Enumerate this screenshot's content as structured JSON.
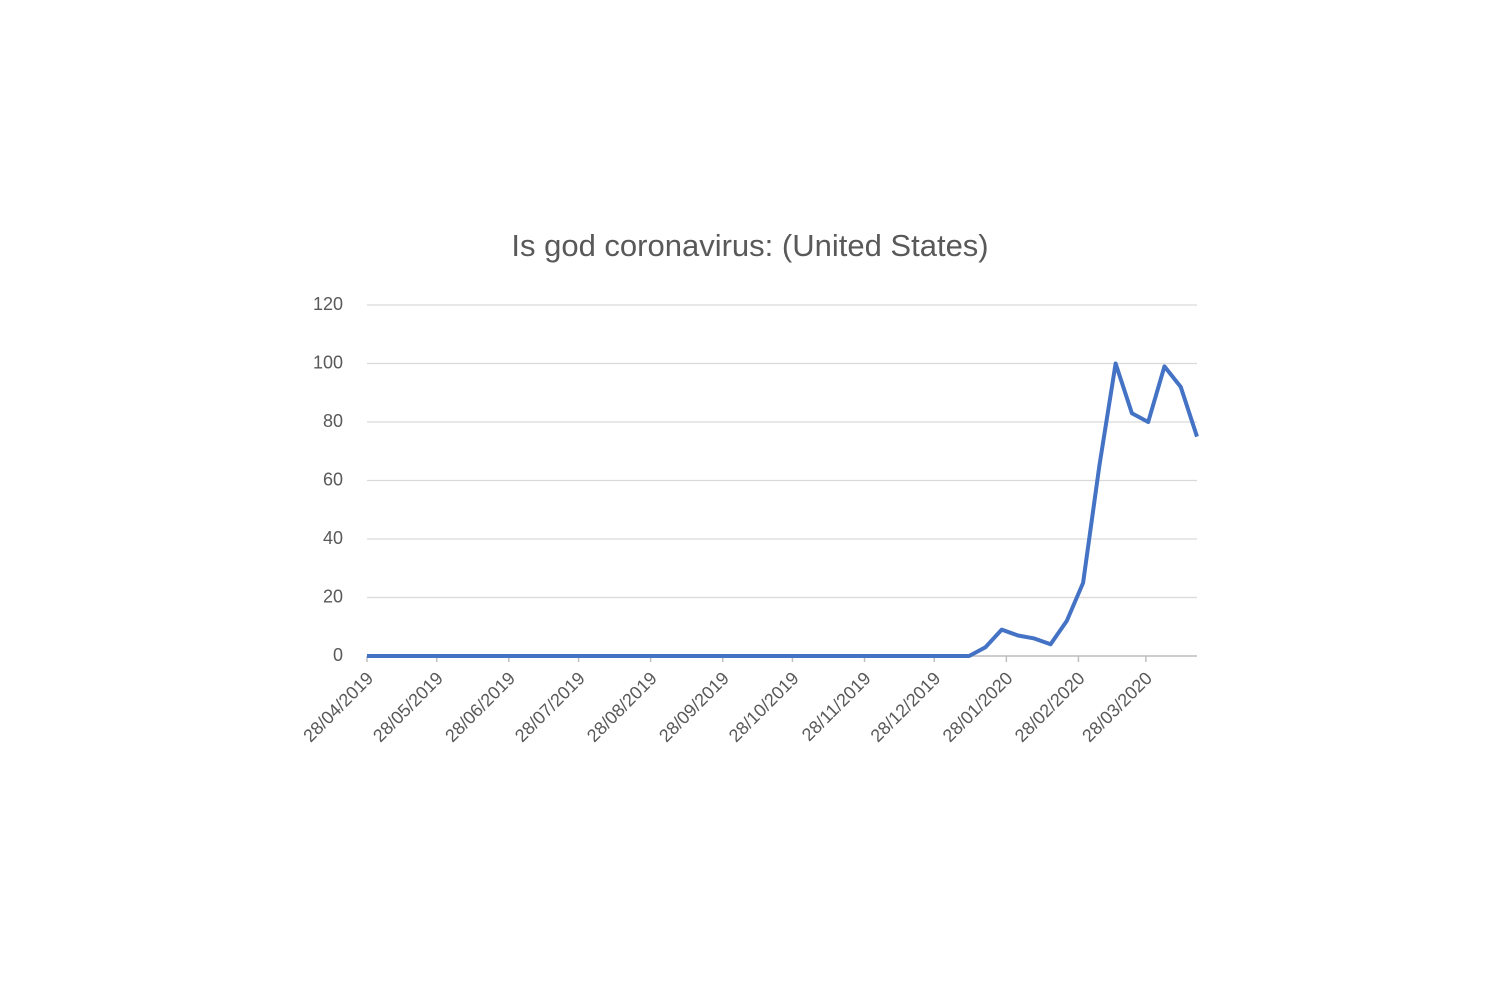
{
  "chart_data": {
    "type": "line",
    "title": "Is god coronavirus: (United States)",
    "x": [
      "28/04/2019",
      "05/05/2019",
      "12/05/2019",
      "19/05/2019",
      "26/05/2019",
      "02/06/2019",
      "09/06/2019",
      "16/06/2019",
      "23/06/2019",
      "30/06/2019",
      "07/07/2019",
      "14/07/2019",
      "21/07/2019",
      "28/07/2019",
      "04/08/2019",
      "11/08/2019",
      "18/08/2019",
      "25/08/2019",
      "01/09/2019",
      "08/09/2019",
      "15/09/2019",
      "22/09/2019",
      "29/09/2019",
      "06/10/2019",
      "13/10/2019",
      "20/10/2019",
      "27/10/2019",
      "03/11/2019",
      "10/11/2019",
      "17/11/2019",
      "24/11/2019",
      "01/12/2019",
      "08/12/2019",
      "15/12/2019",
      "22/12/2019",
      "29/12/2019",
      "05/01/2020",
      "12/01/2020",
      "19/01/2020",
      "26/01/2020",
      "02/02/2020",
      "09/02/2020",
      "16/02/2020",
      "23/02/2020",
      "01/03/2020",
      "08/03/2020",
      "15/03/2020",
      "22/03/2020",
      "29/03/2020",
      "05/04/2020",
      "12/04/2020",
      "19/04/2020"
    ],
    "values": [
      0,
      0,
      0,
      0,
      0,
      0,
      0,
      0,
      0,
      0,
      0,
      0,
      0,
      0,
      0,
      0,
      0,
      0,
      0,
      0,
      0,
      0,
      0,
      0,
      0,
      0,
      0,
      0,
      0,
      0,
      0,
      0,
      0,
      0,
      0,
      0,
      0,
      0,
      3,
      9,
      7,
      6,
      4,
      12,
      25,
      65,
      100,
      83,
      80,
      99,
      92,
      75
    ],
    "color": "#4472c4",
    "xlim": [
      "28/04/2019",
      "19/04/2020"
    ],
    "xticks": [
      "28/04/2019",
      "28/05/2019",
      "28/06/2019",
      "28/07/2019",
      "28/08/2019",
      "28/09/2019",
      "28/10/2019",
      "28/11/2019",
      "28/12/2019",
      "28/01/2020",
      "28/02/2020",
      "28/03/2020"
    ],
    "ylim": [
      0,
      120
    ],
    "yticks": [
      0,
      20,
      40,
      60,
      80,
      100,
      120
    ],
    "grid": true
  }
}
